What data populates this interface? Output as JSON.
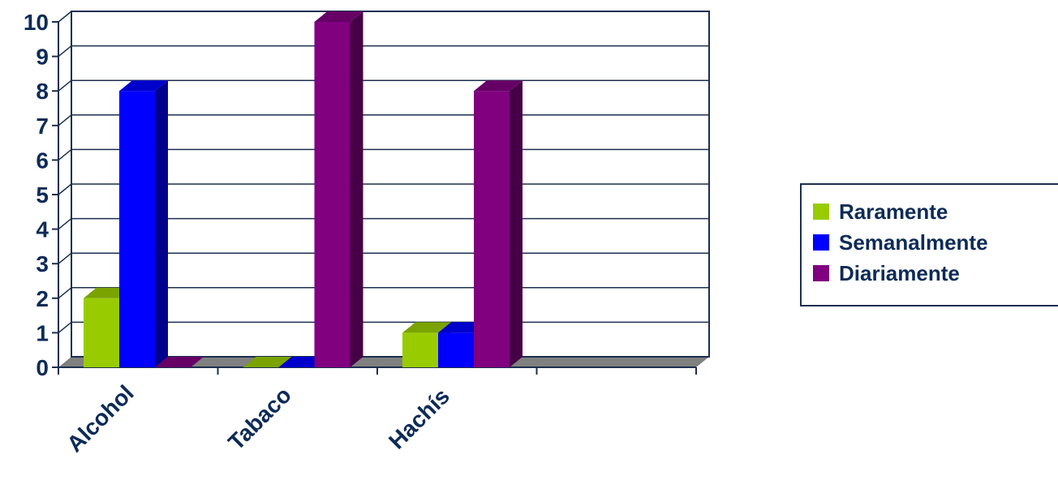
{
  "chart_data": {
    "type": "bar",
    "categories": [
      "Alcohol",
      "Tabaco",
      "Hachís",
      ""
    ],
    "series": [
      {
        "name": "Raramente",
        "values": [
          2,
          0,
          1,
          null
        ],
        "color": "#99cc00"
      },
      {
        "name": "Semanalmente",
        "values": [
          8,
          0,
          1,
          null
        ],
        "color": "#0000ff"
      },
      {
        "name": "Diariamente",
        "values": [
          0,
          10,
          8,
          null
        ],
        "color": "#800080"
      }
    ],
    "ylim": [
      0,
      10
    ],
    "yticks": [
      "0",
      "1",
      "2",
      "3",
      "4",
      "5",
      "6",
      "7",
      "8",
      "9",
      "10"
    ],
    "grid": true,
    "legend_position": "right",
    "title": "",
    "xlabel": "",
    "ylabel": ""
  }
}
